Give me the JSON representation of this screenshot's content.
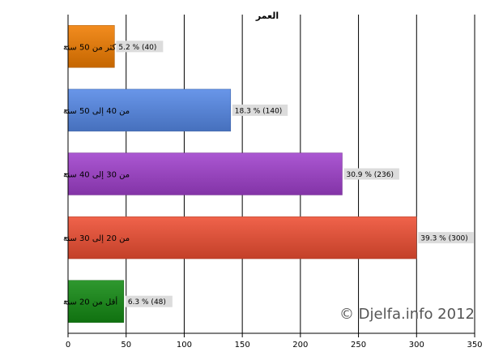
{
  "chart_data": {
    "type": "bar",
    "orientation": "horizontal",
    "title": "العمر",
    "xlabel": "",
    "ylabel": "",
    "categories": [
      "أكثر من 50 سنة",
      "من 40 إلى 50 سنة",
      "من 30 إلى 40 سنة",
      "من 20 إلى 30 سنة",
      "أقل من 20 سنة"
    ],
    "values": [
      40,
      140,
      236,
      300,
      48
    ],
    "data_labels": [
      "5.2 % (40)",
      "18.3 % (140)",
      "30.9 % (236)",
      "39.3 % (300)",
      "6.3 % (48)"
    ],
    "colors": [
      "#f07c00",
      "#5588e6",
      "#a040cc",
      "#ee4e32",
      "#138a13"
    ],
    "xlim": [
      0,
      350
    ],
    "xticks": [
      0,
      50,
      100,
      150,
      200,
      250,
      300,
      350
    ],
    "grid": "vertical",
    "legend": "none"
  },
  "watermark": "© Djelfa.info 2012"
}
